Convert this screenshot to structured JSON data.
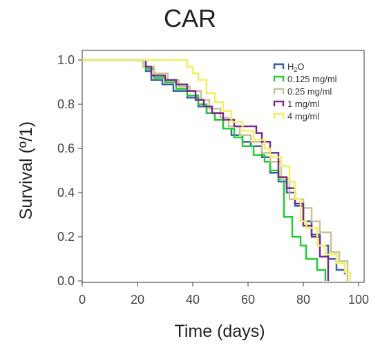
{
  "chart_data": {
    "type": "line",
    "title": "CAR",
    "xlabel": "Time (days)",
    "ylabel": "Survival (º/1)",
    "xlim": [
      0,
      100
    ],
    "ylim": [
      0,
      1
    ],
    "xticks": [
      "0",
      "20",
      "40",
      "60",
      "80",
      "100"
    ],
    "yticks": [
      "0.0",
      "0.2",
      "0.4",
      "0.6",
      "0.8",
      "1.0"
    ],
    "grid": false,
    "legend": "top-right",
    "series": [
      {
        "name": "H2O",
        "color": "#3c5fa8",
        "x": [
          0,
          23,
          25,
          29,
          33,
          38,
          42,
          45,
          48,
          51,
          54,
          58,
          61,
          65,
          68,
          71,
          74,
          77,
          80,
          83,
          86,
          89,
          92,
          95
        ],
        "y": [
          1.0,
          0.95,
          0.91,
          0.89,
          0.86,
          0.83,
          0.79,
          0.76,
          0.73,
          0.69,
          0.66,
          0.63,
          0.61,
          0.56,
          0.49,
          0.45,
          0.4,
          0.34,
          0.27,
          0.21,
          0.16,
          0.1,
          0.05,
          0.03
        ]
      },
      {
        "name": "0.125 mg/ml",
        "color": "#22cc33",
        "x": [
          0,
          23,
          26,
          30,
          34,
          38,
          42,
          45,
          48,
          51,
          55,
          58,
          62,
          66,
          68,
          71,
          73,
          76,
          79,
          81,
          85,
          88
        ],
        "y": [
          1.0,
          0.96,
          0.92,
          0.9,
          0.87,
          0.84,
          0.8,
          0.76,
          0.73,
          0.69,
          0.65,
          0.61,
          0.57,
          0.54,
          0.5,
          0.46,
          0.29,
          0.2,
          0.16,
          0.1,
          0.05,
          0.0
        ]
      },
      {
        "name": "0.25 mg/ml",
        "color": "#c8c490",
        "x": [
          0,
          22,
          26,
          31,
          35,
          39,
          43,
          46,
          50,
          53,
          57,
          61,
          65,
          68,
          72,
          75,
          80,
          83,
          86,
          90,
          93,
          96
        ],
        "y": [
          1.0,
          0.97,
          0.94,
          0.91,
          0.88,
          0.86,
          0.82,
          0.78,
          0.74,
          0.7,
          0.66,
          0.63,
          0.58,
          0.54,
          0.46,
          0.37,
          0.33,
          0.27,
          0.22,
          0.13,
          0.09,
          0.0
        ]
      },
      {
        "name": "1 mg/ml",
        "color": "#7a2a8a",
        "x": [
          0,
          23,
          25,
          30,
          34,
          38,
          41,
          44,
          47,
          51,
          55,
          58,
          63,
          65,
          68,
          71,
          74,
          77,
          80,
          83,
          86,
          89
        ],
        "y": [
          1.0,
          0.97,
          0.93,
          0.91,
          0.89,
          0.86,
          0.82,
          0.79,
          0.76,
          0.73,
          0.7,
          0.7,
          0.67,
          0.63,
          0.58,
          0.47,
          0.42,
          0.35,
          0.25,
          0.2,
          0.11,
          0.0
        ]
      },
      {
        "name": "4 mg/ml",
        "color": "#f2f060",
        "x": [
          0,
          38,
          40,
          42,
          45,
          48,
          51,
          54,
          58,
          62,
          66,
          68,
          72,
          75,
          77,
          79,
          81,
          85,
          88,
          92,
          95,
          97
        ],
        "y": [
          1.0,
          0.97,
          0.94,
          0.91,
          0.85,
          0.81,
          0.77,
          0.72,
          0.68,
          0.64,
          0.6,
          0.56,
          0.52,
          0.45,
          0.37,
          0.27,
          0.24,
          0.16,
          0.12,
          0.08,
          0.04,
          0.0
        ]
      }
    ]
  }
}
